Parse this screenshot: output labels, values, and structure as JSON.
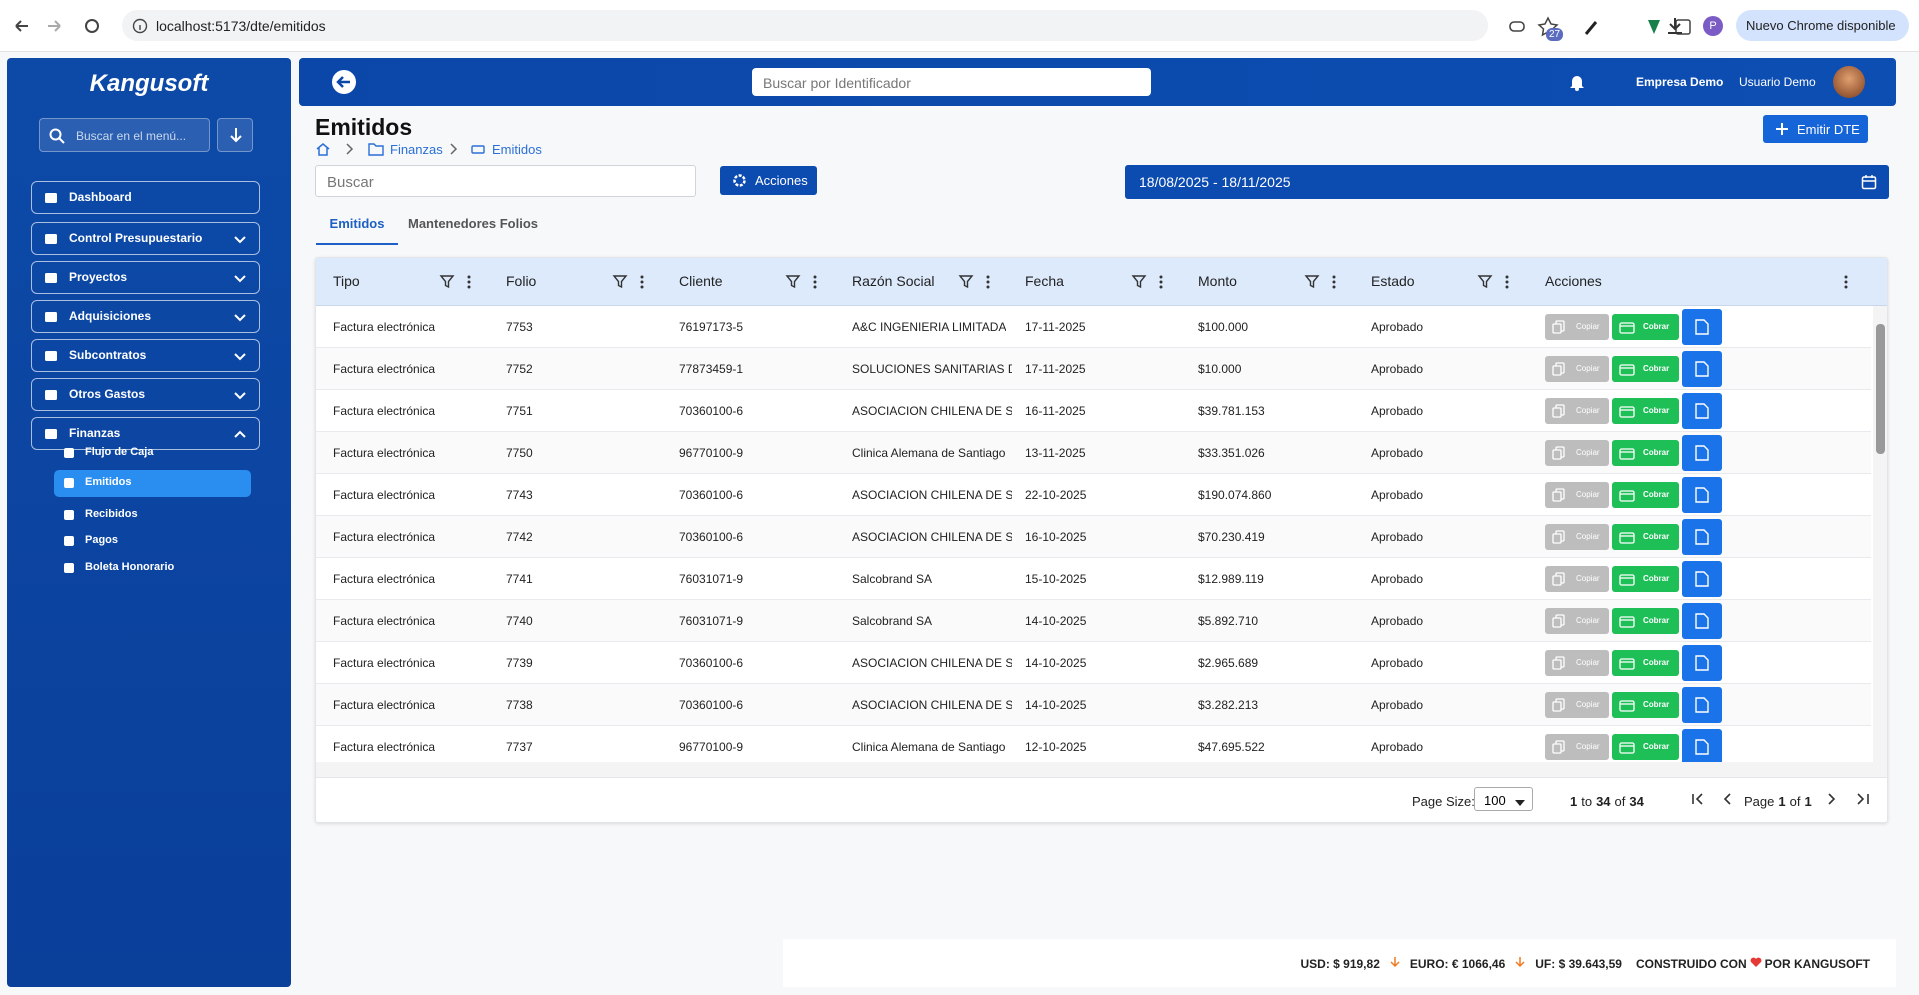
{
  "browser": {
    "url": "localhost:5173/dte/emitidos",
    "badge": "27",
    "profile": "P",
    "update": "Nuevo Chrome disponible"
  },
  "sidebar": {
    "logo": "Kangusoft",
    "search_placeholder": "Buscar en el menú...",
    "items": [
      "Dashboard",
      "Control Presupuestario",
      "Proyectos",
      "Adquisiciones",
      "Subcontratos",
      "Otros Gastos",
      "Finanzas"
    ],
    "subitems": [
      "Flujo de Caja",
      "Emitidos",
      "Recibidos",
      "Pagos",
      "Boleta Honorario"
    ]
  },
  "header": {
    "search_placeholder": "Buscar por Identificador",
    "company": "Empresa Demo",
    "user": "Usuario Demo"
  },
  "page": {
    "title": "Emitidos",
    "breadcrumb": [
      "Finanzas",
      "Emitidos"
    ],
    "emit_button": "Emitir DTE",
    "search_placeholder": "Buscar",
    "actions_button": "Acciones",
    "date_range": "18/08/2025 - 18/11/2025",
    "tabs": [
      "Emitidos",
      "Mantenedores Folios"
    ]
  },
  "table": {
    "columns": [
      "Tipo",
      "Folio",
      "Cliente",
      "Razón Social",
      "Fecha",
      "Monto",
      "Estado",
      "Acciones"
    ],
    "rows": [
      [
        "Factura electrónica",
        "7753",
        "76197173-5",
        "A&C INGENIERIA LIMITADA",
        "17-11-2025",
        "$100.000",
        "Aprobado"
      ],
      [
        "Factura electrónica",
        "7752",
        "77873459-1",
        "SOLUCIONES SANITARIAS DL",
        "17-11-2025",
        "$10.000",
        "Aprobado"
      ],
      [
        "Factura electrónica",
        "7751",
        "70360100-6",
        "ASOCIACION CHILENA DE SE",
        "16-11-2025",
        "$39.781.153",
        "Aprobado"
      ],
      [
        "Factura electrónica",
        "7750",
        "96770100-9",
        "Clinica Alemana de Santiago",
        "13-11-2025",
        "$33.351.026",
        "Aprobado"
      ],
      [
        "Factura electrónica",
        "7743",
        "70360100-6",
        "ASOCIACION CHILENA DE SE",
        "22-10-2025",
        "$190.074.860",
        "Aprobado"
      ],
      [
        "Factura electrónica",
        "7742",
        "70360100-6",
        "ASOCIACION CHILENA DE SE",
        "16-10-2025",
        "$70.230.419",
        "Aprobado"
      ],
      [
        "Factura electrónica",
        "7741",
        "76031071-9",
        "Salcobrand SA",
        "15-10-2025",
        "$12.989.119",
        "Aprobado"
      ],
      [
        "Factura electrónica",
        "7740",
        "76031071-9",
        "Salcobrand SA",
        "14-10-2025",
        "$5.892.710",
        "Aprobado"
      ],
      [
        "Factura electrónica",
        "7739",
        "70360100-6",
        "ASOCIACION CHILENA DE SE",
        "14-10-2025",
        "$2.965.689",
        "Aprobado"
      ],
      [
        "Factura electrónica",
        "7738",
        "70360100-6",
        "ASOCIACION CHILENA DE SE",
        "14-10-2025",
        "$3.282.213",
        "Aprobado"
      ],
      [
        "Factura electrónica",
        "7737",
        "96770100-9",
        "Clinica Alemana de Santiago",
        "12-10-2025",
        "$47.695.522",
        "Aprobado"
      ]
    ],
    "row_actions": [
      "Copiar",
      "Cobrar"
    ]
  },
  "pagination": {
    "page_size_label": "Page Size:",
    "page_size": "100",
    "from": "1",
    "to_word": "to",
    "to": "34",
    "of_word": "of",
    "total": "34",
    "page_word": "Page",
    "page": "1",
    "of_word2": "of",
    "pages": "1"
  },
  "footer": {
    "usd": "USD: $ 919,82",
    "euro": "EURO: € 1066,46",
    "uf": "UF: $ 39.643,59",
    "built_left": "CONSTRUIDO CON",
    "built_right": "POR KANGUSOFT"
  }
}
